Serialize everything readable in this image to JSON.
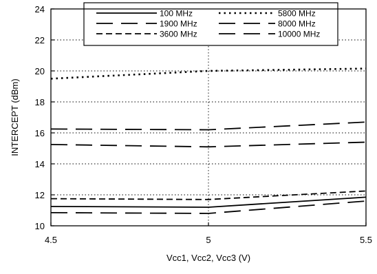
{
  "chart_data": {
    "type": "line",
    "title": "",
    "xlabel": "Vcc1, Vcc2, Vcc3 (V)",
    "ylabel": "INTERCEPT (dBm)",
    "xlim": [
      4.5,
      5.5
    ],
    "ylim": [
      10,
      24
    ],
    "xticks": [
      4.5,
      5,
      5.5
    ],
    "yticks": [
      10,
      12,
      14,
      16,
      18,
      20,
      22,
      24
    ],
    "xtick_labels": [
      "4.5",
      "5",
      "5.5"
    ],
    "ytick_labels": [
      "10",
      "12",
      "14",
      "16",
      "18",
      "20",
      "22",
      "24"
    ],
    "grid": "dotted, at y ticks and at x=5",
    "legend_placement": "top-center, inside plot",
    "series": [
      {
        "name": "100 MHz",
        "style": "solid",
        "x": [
          4.5,
          5.0,
          5.5
        ],
        "y": [
          11.25,
          11.2,
          11.85
        ]
      },
      {
        "name": "1900 MHz",
        "style": "long-dash",
        "x": [
          4.5,
          5.0,
          5.5
        ],
        "y": [
          15.25,
          15.1,
          15.4
        ]
      },
      {
        "name": "3600 MHz",
        "style": "short-dash",
        "x": [
          4.5,
          5.0,
          5.5
        ],
        "y": [
          11.75,
          11.7,
          12.25
        ]
      },
      {
        "name": "5800 MHz",
        "style": "dotted",
        "x": [
          4.5,
          5.0,
          5.5
        ],
        "y": [
          19.5,
          20.0,
          20.15
        ]
      },
      {
        "name": "8000 MHz",
        "style": "long-dash",
        "x": [
          4.5,
          5.0,
          5.5
        ],
        "y": [
          16.25,
          16.2,
          16.7
        ]
      },
      {
        "name": "10000 MHz",
        "style": "long-dash",
        "x": [
          4.5,
          5.0,
          5.5
        ],
        "y": [
          10.85,
          10.8,
          11.6
        ]
      }
    ],
    "legend_order": [
      0,
      3,
      1,
      4,
      2,
      5
    ]
  }
}
